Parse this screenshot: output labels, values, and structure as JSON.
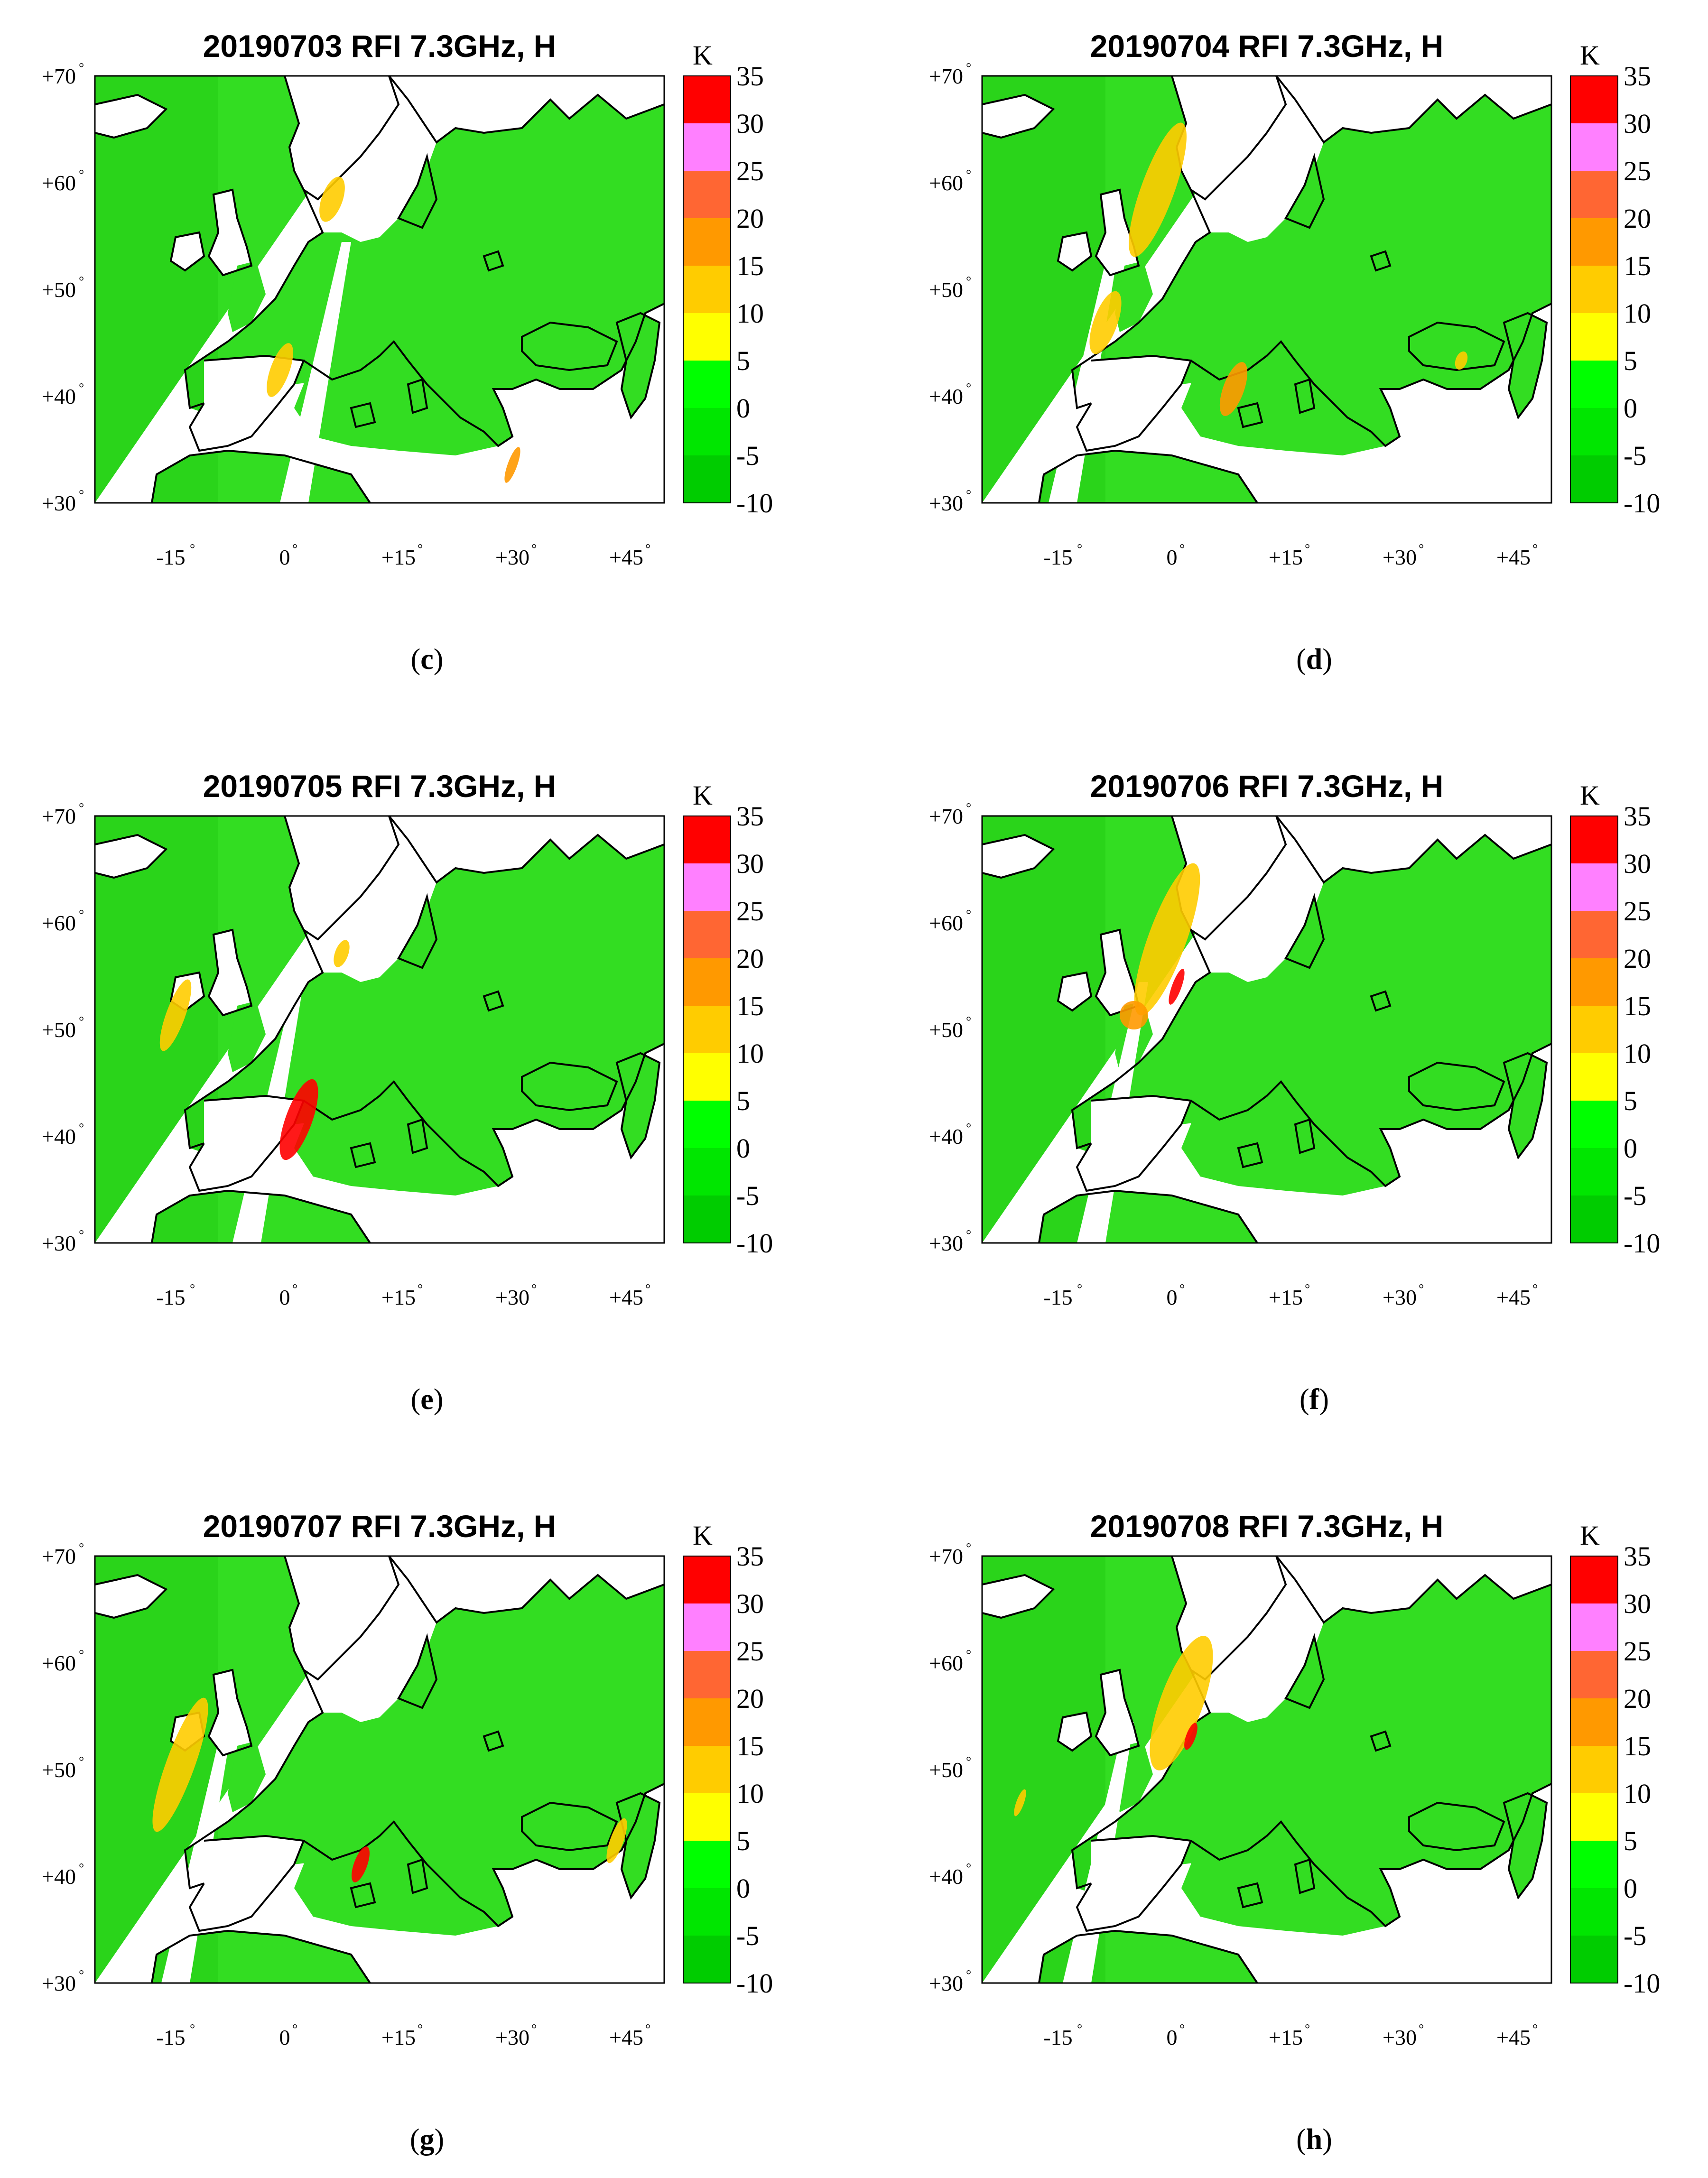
{
  "figure": {
    "colorbar": {
      "unit": "K",
      "ticks": [
        "35",
        "30",
        "25",
        "20",
        "15",
        "10",
        "5",
        "0",
        "-5",
        "-10"
      ],
      "bands": [
        {
          "from": 30,
          "to": 35,
          "color": "#ff0000"
        },
        {
          "from": 25,
          "to": 30,
          "color": "#ff80ff"
        },
        {
          "from": 20,
          "to": 25,
          "color": "#ff6633"
        },
        {
          "from": 15,
          "to": 20,
          "color": "#ff9900"
        },
        {
          "from": 10,
          "to": 15,
          "color": "#ffcc00"
        },
        {
          "from": 5,
          "to": 10,
          "color": "#ffff00"
        },
        {
          "from": 0,
          "to": 5,
          "color": "#00ff00"
        },
        {
          "from": -5,
          "to": 0,
          "color": "#00e600"
        },
        {
          "from": -10,
          "to": -5,
          "color": "#00cc00"
        }
      ]
    },
    "axes": {
      "lat_ticks": [
        "+70",
        "+60",
        "+50",
        "+40",
        "+30"
      ],
      "lon_ticks": [
        "-15",
        "0",
        "+15",
        "+30",
        "+45"
      ],
      "lat_range": [
        30,
        70
      ],
      "lon_range": [
        -25,
        50
      ]
    },
    "map_colors": {
      "ocean_green": "#33dd22",
      "ocean_green_dark": "#22cc11",
      "land": "#ffffff",
      "coast": "#000000"
    },
    "panels": [
      {
        "title": "20190703 RFI 7.3GHz, H",
        "caption_letter": "c"
      },
      {
        "title": "20190704 RFI 7.3GHz, H",
        "caption_letter": "d"
      },
      {
        "title": "20190705 RFI 7.3GHz, H",
        "caption_letter": "e"
      },
      {
        "title": "20190706 RFI 7.3GHz, H",
        "caption_letter": "f"
      },
      {
        "title": "20190707 RFI 7.3GHz, H",
        "caption_letter": "g"
      },
      {
        "title": "20190708 RFI 7.3GHz, H",
        "caption_letter": "h"
      }
    ]
  }
}
